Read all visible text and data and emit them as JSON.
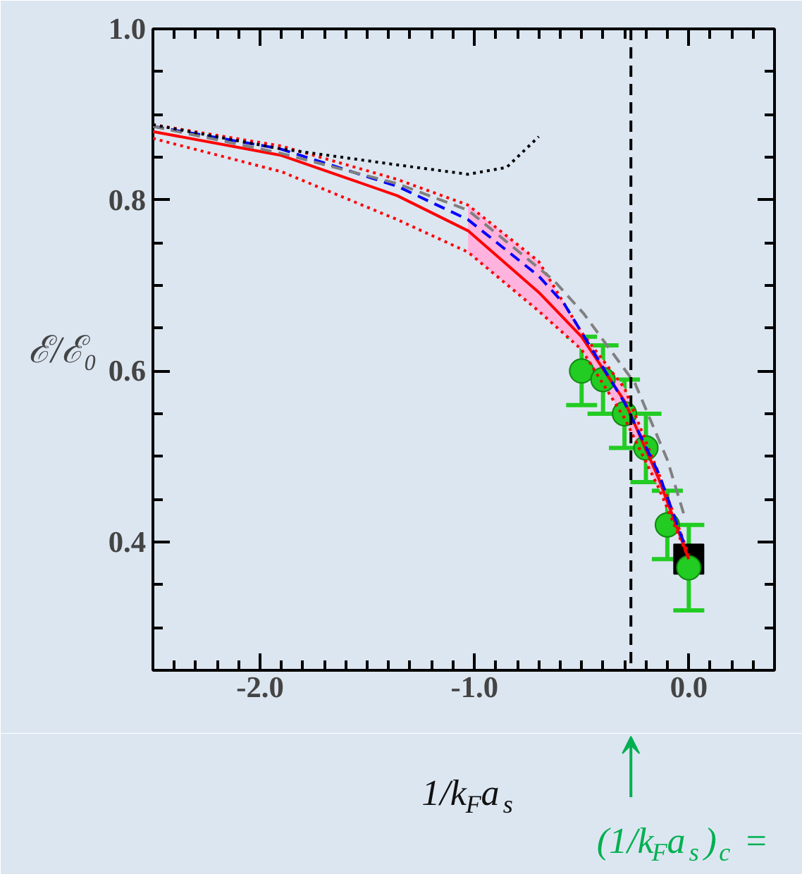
{
  "chart_data": {
    "type": "line",
    "xlabel": "1/k$_{F}$a$_{s}$",
    "ylabel": "ℰ/ℰ₀",
    "xlim": [
      -2.5,
      0.4
    ],
    "ylim": [
      0.25,
      1.0
    ],
    "xticks": [
      {
        "value": -2.5,
        "label": null
      },
      {
        "value": -2.4,
        "label": null
      },
      {
        "value": -2.3,
        "label": null
      },
      {
        "value": -2.2,
        "label": null
      },
      {
        "value": -2.1,
        "label": null
      },
      {
        "value": -2,
        "label": "-2.0"
      },
      {
        "value": -1.9,
        "label": null
      },
      {
        "value": -1.8,
        "label": null
      },
      {
        "value": -1.7,
        "label": null
      },
      {
        "value": -1.6,
        "label": null
      },
      {
        "value": -1.5,
        "label": null
      },
      {
        "value": -1.4,
        "label": null
      },
      {
        "value": -1.3,
        "label": null
      },
      {
        "value": -1.2,
        "label": null
      },
      {
        "value": -1.1,
        "label": null
      },
      {
        "value": -1,
        "label": "-1.0"
      },
      {
        "value": -0.9,
        "label": null
      },
      {
        "value": -0.8,
        "label": null
      },
      {
        "value": -0.7,
        "label": null
      },
      {
        "value": -0.6,
        "label": null
      },
      {
        "value": -0.5,
        "label": null
      },
      {
        "value": -0.4,
        "label": null
      },
      {
        "value": -0.3,
        "label": null
      },
      {
        "value": -0.2,
        "label": null
      },
      {
        "value": -0.1,
        "label": null
      },
      {
        "value": 0,
        "label": "0.0"
      },
      {
        "value": 0.1,
        "label": null
      },
      {
        "value": 0.2,
        "label": null
      },
      {
        "value": 0.3,
        "label": null
      },
      {
        "value": 0.4,
        "label": null
      }
    ],
    "yticks": [
      {
        "value": 0.25,
        "label": null
      },
      {
        "value": 0.3,
        "label": null
      },
      {
        "value": 0.35,
        "label": null
      },
      0.4,
      {
        "value": 0.45,
        "label": null
      },
      {
        "value": 0.5,
        "label": null
      },
      {
        "value": 0.55,
        "label": null
      },
      0.6,
      {
        "value": 0.65,
        "label": null
      },
      {
        "value": 0.7,
        "label": null
      },
      {
        "value": 0.75,
        "label": null
      },
      0.8,
      {
        "value": 0.85,
        "label": null
      },
      {
        "value": 0.9,
        "label": null
      },
      {
        "value": 0.95,
        "label": null
      },
      {
        "value": 1,
        "label": "1.0"
      }
    ],
    "grid": false,
    "series": [
      {
        "line_style": "solid",
        "color": "#ff0000",
        "x": [
          -2.5,
          -1.9,
          -1.36,
          -1.03,
          -0.7,
          -0.5,
          -0.3,
          -0.14,
          0.0
        ],
        "values": [
          0.88,
          0.852,
          0.805,
          0.764,
          0.692,
          0.64,
          0.565,
          0.474,
          0.38
        ],
        "lower": [
          null,
          null,
          null,
          0.739,
          0.67,
          0.625,
          0.545,
          0.463,
          0.38
        ],
        "upper": [
          null,
          null,
          null,
          0.794,
          0.728,
          0.645,
          0.58,
          0.48,
          0.385
        ]
      },
      {
        "line_style": "dotted",
        "color": "#ff0000",
        "x": [
          -2.5,
          -1.9,
          -1.36,
          -1.03,
          -0.7,
          -0.5,
          -0.3,
          -0.14,
          0.0
        ],
        "values": [
          0.872,
          0.833,
          0.777,
          0.739,
          0.67,
          0.625,
          0.545,
          0.463,
          0.38
        ]
      },
      {
        "line_style": "dotted",
        "color": "#ff0000",
        "x": [
          -2.5,
          -1.9,
          -1.36,
          -1.03,
          -0.7,
          -0.5,
          -0.3,
          -0.14,
          0.0
        ],
        "values": [
          0.888,
          0.863,
          0.824,
          0.794,
          0.728,
          0.645,
          0.58,
          0.48,
          0.385
        ]
      },
      {
        "line_style": "dashed",
        "color": "#0000ff",
        "x": [
          -2.5,
          -1.91,
          -1.36,
          -1.03,
          -0.7,
          -0.58,
          -0.3,
          -0.14,
          -0.02
        ],
        "values": [
          0.886,
          0.86,
          0.816,
          0.777,
          0.711,
          0.678,
          0.563,
          0.48,
          0.397
        ]
      },
      {
        "line_style": "dashed",
        "color": "#808080",
        "x": [
          -2.5,
          -1.91,
          -1.36,
          -1.03,
          -0.63,
          -0.49,
          -0.25,
          -0.1,
          -0.02
        ],
        "values": [
          0.886,
          0.855,
          0.819,
          0.788,
          0.706,
          0.667,
          0.585,
          0.496,
          0.43
        ]
      },
      {
        "line_style": "dotted",
        "color": "#000000",
        "x": [
          -2.5,
          -1.91,
          -1.36,
          -1.03,
          -0.85,
          -0.7
        ],
        "values": [
          0.888,
          0.86,
          0.841,
          0.83,
          0.838,
          0.874
        ]
      },
      {
        "type": "scatter",
        "marker": "square",
        "color": "#000000",
        "x": [
          0.0
        ],
        "values": [
          0.38
        ]
      },
      {
        "type": "scatter",
        "marker": "circle",
        "color": "#22cc22",
        "x": [
          -0.5,
          -0.4,
          -0.3,
          -0.2,
          -0.1,
          0.0
        ],
        "values": [
          0.6,
          0.59,
          0.55,
          0.51,
          0.42,
          0.37
        ],
        "errors": [
          0.04,
          0.04,
          0.04,
          0.04,
          0.04,
          0.05
        ]
      }
    ],
    "ref_lines": [
      {
        "axis": "x",
        "value": -0.27,
        "color": "#000000",
        "line_style": "dashed"
      }
    ],
    "annotations": [
      "(1/k$_{F}$a$_{s}$)$_{c}$ ="
    ]
  }
}
